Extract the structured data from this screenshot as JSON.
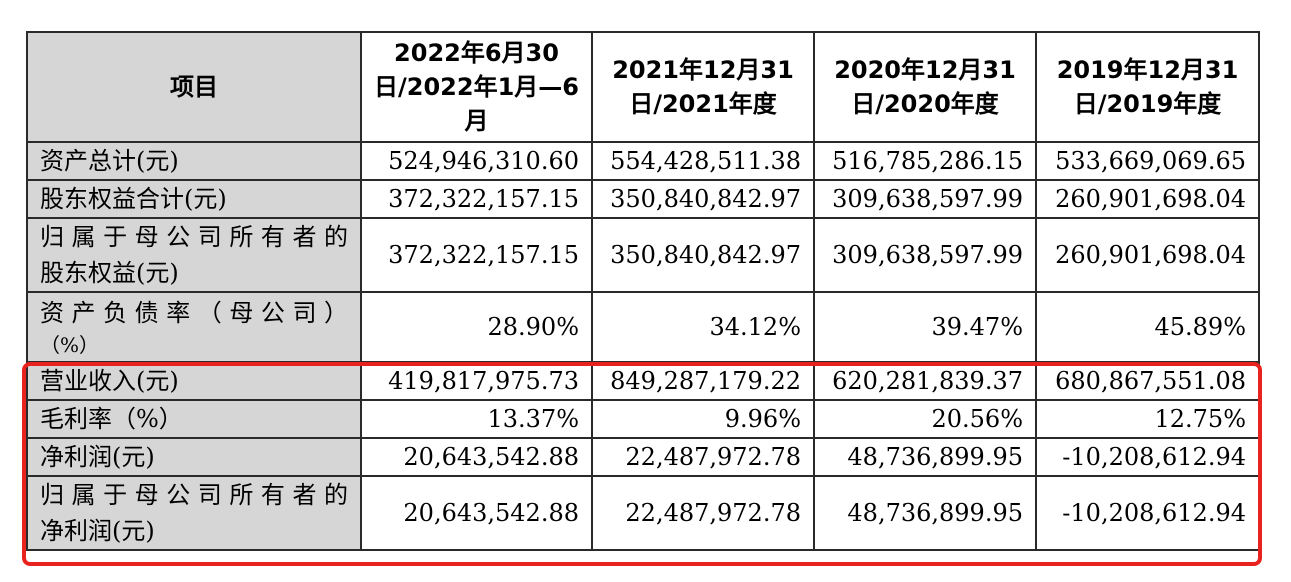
{
  "table": {
    "headers": [
      "项目",
      "2022年6月30日/2022年1月—6月",
      "2021年12月31日/2021年度",
      "2020年12月31日/2020年度",
      "2019年12月31日/2019年度"
    ],
    "rows": [
      {
        "label": "资产总计(元)",
        "values": [
          "524,946,310.60",
          "554,428,511.38",
          "516,785,286.15",
          "533,669,069.65"
        ]
      },
      {
        "label": "股东权益合计(元)",
        "values": [
          "372,322,157.15",
          "350,840,842.97",
          "309,638,597.99",
          "260,901,698.04"
        ]
      },
      {
        "label_lines": [
          "归属于母公司所有者的",
          "股东权益(元)"
        ],
        "values": [
          "372,322,157.15",
          "350,840,842.97",
          "309,638,597.99",
          "260,901,698.04"
        ]
      },
      {
        "label_lines": [
          "资产负债率（母公司）",
          "（%）"
        ],
        "values": [
          "28.90%",
          "34.12%",
          "39.47%",
          "45.89%"
        ]
      },
      {
        "label": "营业收入(元)",
        "values": [
          "419,817,975.73",
          "849,287,179.22",
          "620,281,839.37",
          "680,867,551.08"
        ]
      },
      {
        "label": "毛利率（%）",
        "values": [
          "13.37%",
          "9.96%",
          "20.56%",
          "12.75%"
        ]
      },
      {
        "label": "净利润(元)",
        "values": [
          "20,643,542.88",
          "22,487,972.78",
          "48,736,899.95",
          "-10,208,612.94"
        ]
      },
      {
        "label_lines": [
          "归属于母公司所有者的",
          "净利润(元)"
        ],
        "values": [
          "20,643,542.88",
          "22,487,972.78",
          "48,736,899.95",
          "-10,208,612.94"
        ]
      }
    ]
  },
  "highlight": {
    "color": "#e8231f"
  }
}
